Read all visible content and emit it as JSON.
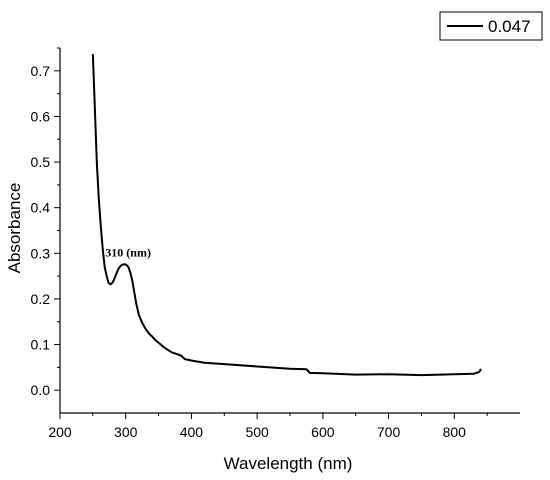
{
  "chart_data": {
    "type": "line",
    "xlabel": "Wavelength (nm)",
    "ylabel": "Absorbance",
    "xlim": [
      200,
      900
    ],
    "ylim": [
      -0.05,
      0.75
    ],
    "x_ticks": [
      200,
      300,
      400,
      500,
      600,
      700,
      800
    ],
    "y_ticks": [
      0.0,
      0.1,
      0.2,
      0.3,
      0.4,
      0.5,
      0.6,
      0.7
    ],
    "legend_position": "top-right",
    "annotation": {
      "text": "310 (nm)",
      "x": 310,
      "y": 0.275
    },
    "series": [
      {
        "name": "0.047",
        "color": "#000000",
        "x": [
          250,
          253,
          256,
          259,
          262,
          265,
          268,
          271,
          274,
          277,
          280,
          283,
          286,
          289,
          292,
          295,
          298,
          301,
          304,
          307,
          310,
          313,
          316,
          320,
          325,
          330,
          335,
          340,
          345,
          350,
          360,
          370,
          380,
          385,
          390,
          400,
          420,
          450,
          500,
          550,
          575,
          580,
          600,
          650,
          700,
          750,
          800,
          830,
          838,
          840
        ],
        "y": [
          0.735,
          0.62,
          0.5,
          0.42,
          0.36,
          0.31,
          0.27,
          0.25,
          0.235,
          0.232,
          0.236,
          0.245,
          0.256,
          0.266,
          0.272,
          0.275,
          0.276,
          0.275,
          0.27,
          0.258,
          0.24,
          0.215,
          0.19,
          0.165,
          0.148,
          0.135,
          0.125,
          0.118,
          0.11,
          0.104,
          0.092,
          0.083,
          0.078,
          0.075,
          0.068,
          0.065,
          0.06,
          0.057,
          0.052,
          0.047,
          0.046,
          0.038,
          0.037,
          0.034,
          0.035,
          0.033,
          0.035,
          0.036,
          0.04,
          0.045
        ]
      }
    ]
  }
}
